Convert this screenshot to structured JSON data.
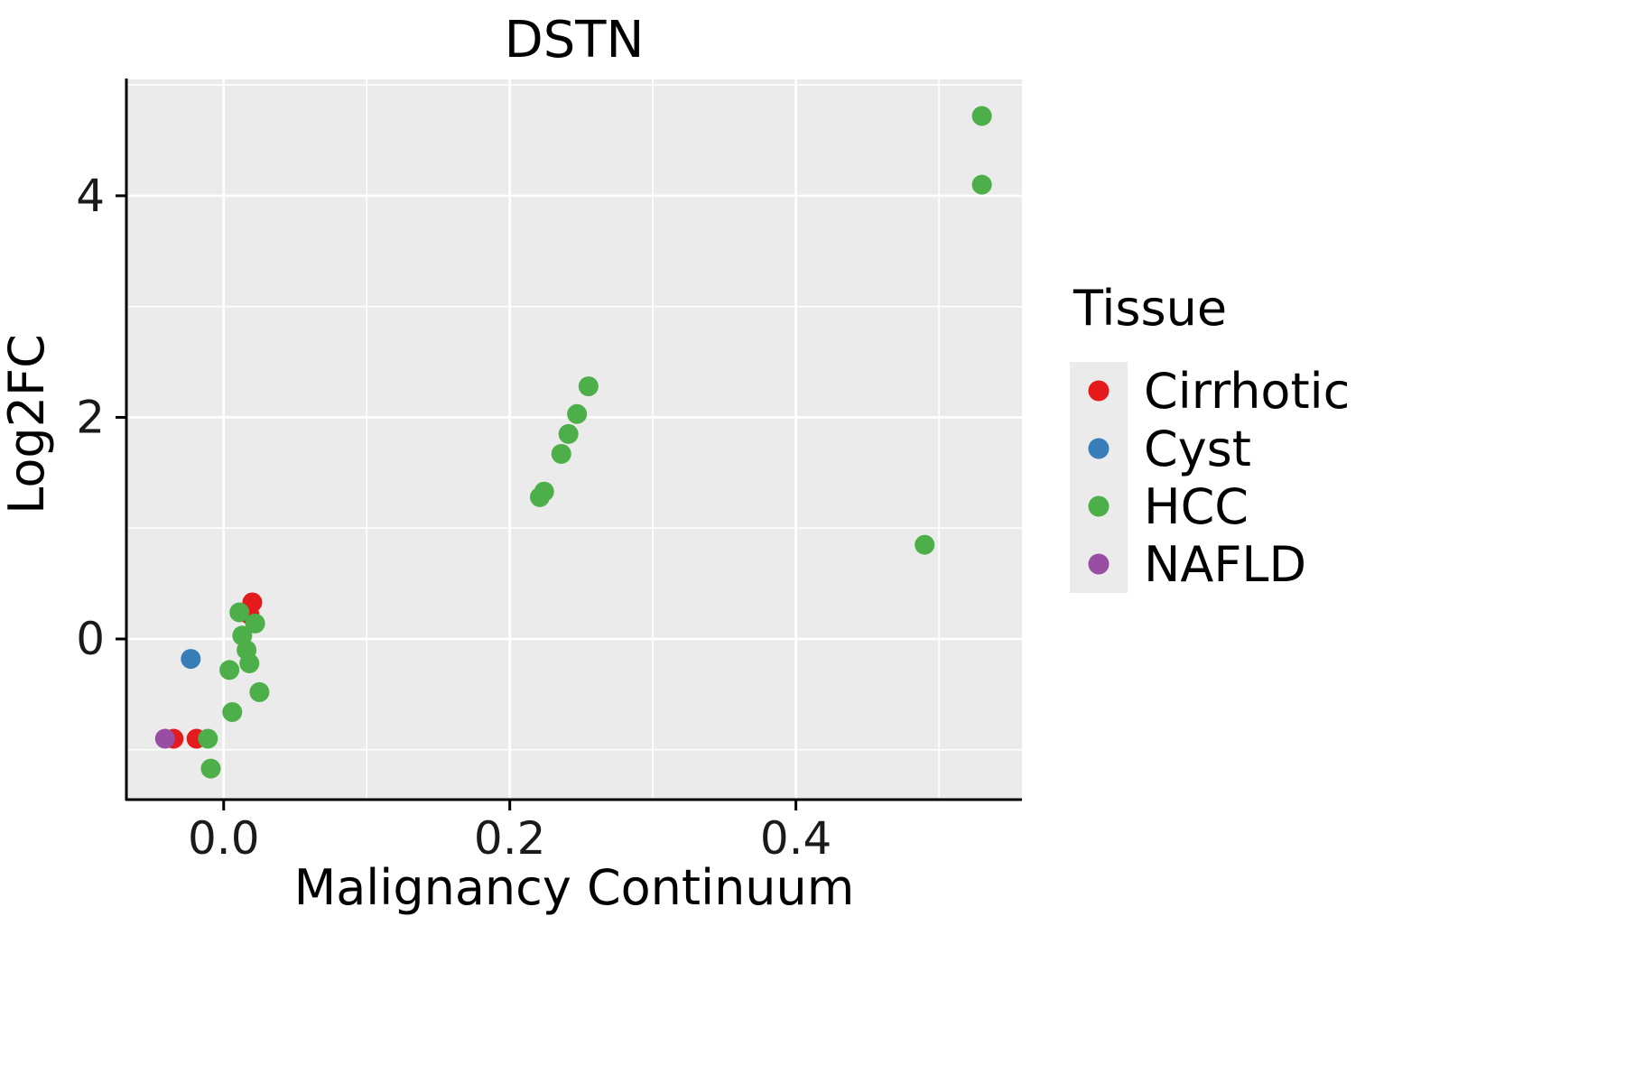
{
  "title": "DSTN",
  "chart_data": {
    "type": "scatter",
    "title": "DSTN",
    "xlabel": "Malignancy Continuum",
    "ylabel": "Log2FC",
    "xlim": [
      -0.068,
      0.558
    ],
    "ylim": [
      -1.45,
      5.05
    ],
    "x_ticks": [
      0.0,
      0.2,
      0.4
    ],
    "x_tick_labels": [
      "0.0",
      "0.2",
      "0.4"
    ],
    "x_minor_ticks": [
      0.1,
      0.3,
      0.5
    ],
    "y_ticks": [
      0,
      2,
      4
    ],
    "y_tick_labels": [
      "0",
      "2",
      "4"
    ],
    "y_minor_ticks": [
      -1,
      1,
      3,
      5
    ],
    "grid": true,
    "panel_background": "#EBEBEB",
    "grid_color": "#FFFFFF",
    "axis_color": "#000000",
    "tick_label_color": "#1a1a1a",
    "legend_title": "Tissue",
    "legend_position": "right",
    "point_radius": 11,
    "series": [
      {
        "name": "Cirrhotic",
        "color": "#E41A1C",
        "points": [
          [
            -0.035,
            -0.9
          ],
          [
            -0.019,
            -0.9
          ],
          [
            0.018,
            0.22
          ],
          [
            0.02,
            0.33
          ]
        ]
      },
      {
        "name": "Cyst",
        "color": "#377EB8",
        "points": [
          [
            -0.023,
            -0.18
          ]
        ]
      },
      {
        "name": "HCC",
        "color": "#4DAF4A",
        "points": [
          [
            -0.011,
            -0.9
          ],
          [
            -0.009,
            -1.17
          ],
          [
            0.004,
            -0.28
          ],
          [
            0.006,
            -0.66
          ],
          [
            0.011,
            0.24
          ],
          [
            0.013,
            0.03
          ],
          [
            0.016,
            -0.1
          ],
          [
            0.018,
            -0.22
          ],
          [
            0.022,
            0.14
          ],
          [
            0.025,
            -0.48
          ],
          [
            0.221,
            1.28
          ],
          [
            0.224,
            1.33
          ],
          [
            0.236,
            1.67
          ],
          [
            0.241,
            1.85
          ],
          [
            0.247,
            2.03
          ],
          [
            0.255,
            2.28
          ],
          [
            0.49,
            0.85
          ],
          [
            0.53,
            4.1
          ],
          [
            0.53,
            4.72
          ]
        ]
      },
      {
        "name": "NAFLD",
        "color": "#984EA3",
        "points": [
          [
            -0.041,
            -0.9
          ]
        ]
      }
    ]
  }
}
